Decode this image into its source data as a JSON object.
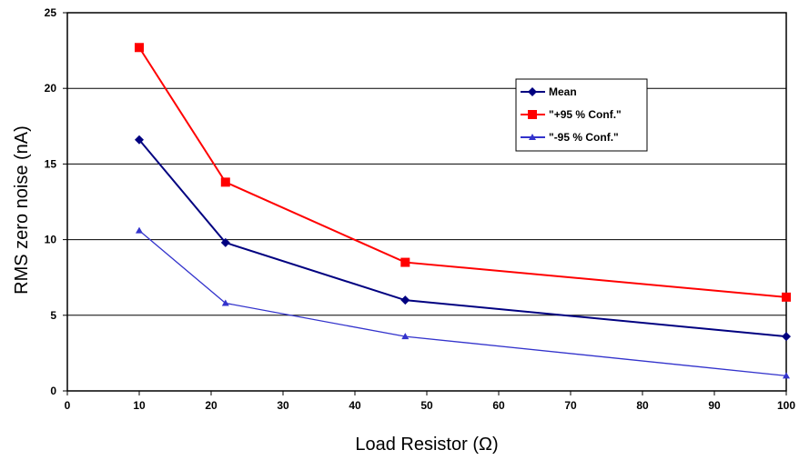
{
  "chart_data": {
    "type": "line",
    "title": "",
    "xlabel": "Load Resistor (Ω)",
    "ylabel": "RMS zero noise (nA)",
    "xlim": [
      0,
      100
    ],
    "ylim": [
      0,
      25
    ],
    "x_ticks": [
      "0",
      "10",
      "20",
      "30",
      "40",
      "50",
      "60",
      "70",
      "80",
      "90",
      "100"
    ],
    "y_ticks": [
      "0",
      "5",
      "10",
      "15",
      "20",
      "25"
    ],
    "grid": "horizontal",
    "legend_position": "upper-right",
    "series": [
      {
        "name": "Mean",
        "color": "#000080",
        "marker": "diamond",
        "x": [
          10,
          22,
          47,
          100
        ],
        "values": [
          16.6,
          9.8,
          6.0,
          3.6
        ]
      },
      {
        "name": "\"+95 % Conf.\"",
        "color": "#ff0000",
        "marker": "square",
        "x": [
          10,
          22,
          47,
          100
        ],
        "values": [
          22.7,
          13.8,
          8.5,
          6.2
        ]
      },
      {
        "name": "\"-95 % Conf.\"",
        "color": "#3333cc",
        "marker": "triangle",
        "x": [
          10,
          22,
          47,
          100
        ],
        "values": [
          10.6,
          5.8,
          3.6,
          1.0
        ]
      }
    ]
  }
}
